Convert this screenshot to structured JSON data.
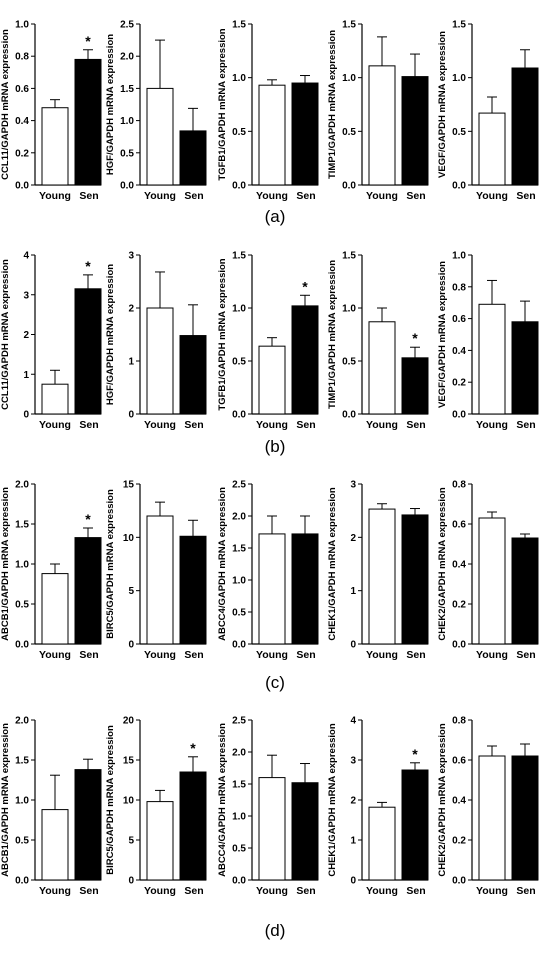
{
  "panels": [
    {
      "label": "(a)",
      "charts": [
        {
          "ylabel": "CCL11/GAPDH mRNA expression",
          "ylim": [
            0,
            1.0
          ],
          "ticks": [
            "0.0",
            "0.2",
            "0.4",
            "0.6",
            "0.8",
            "1.0"
          ],
          "categories": [
            "Young",
            "Sen"
          ],
          "values": [
            0.48,
            0.78
          ],
          "errors": [
            0.05,
            0.06
          ],
          "sig": [
            false,
            true
          ]
        },
        {
          "ylabel": "HGF/GAPDH mRNA expression",
          "ylim": [
            0,
            2.5
          ],
          "ticks": [
            "0.0",
            "0.5",
            "1.0",
            "1.5",
            "2.0",
            "2.5"
          ],
          "categories": [
            "Young",
            "Sen"
          ],
          "values": [
            1.5,
            0.84
          ],
          "errors": [
            0.75,
            0.35
          ],
          "sig": [
            false,
            false
          ]
        },
        {
          "ylabel": "TGFB1/GAPDH mRNA expression",
          "ylim": [
            0,
            1.5
          ],
          "ticks": [
            "0.0",
            "0.5",
            "1.0",
            "1.5"
          ],
          "categories": [
            "Young",
            "Sen"
          ],
          "values": [
            0.93,
            0.95
          ],
          "errors": [
            0.05,
            0.07
          ],
          "sig": [
            false,
            false
          ]
        },
        {
          "ylabel": "TIMP1/GAPDH mRNA expression",
          "ylim": [
            0,
            1.5
          ],
          "ticks": [
            "0.0",
            "0.5",
            "1.0",
            "1.5"
          ],
          "categories": [
            "Young",
            "Sen"
          ],
          "values": [
            1.11,
            1.01
          ],
          "errors": [
            0.27,
            0.21
          ],
          "sig": [
            false,
            false
          ]
        },
        {
          "ylabel": "VEGF/GAPDH mRNA expression",
          "ylim": [
            0,
            1.5
          ],
          "ticks": [
            "0.0",
            "0.5",
            "1.0",
            "1.5"
          ],
          "categories": [
            "Young",
            "Sen"
          ],
          "values": [
            0.67,
            1.09
          ],
          "errors": [
            0.15,
            0.17
          ],
          "sig": [
            false,
            false
          ]
        }
      ]
    },
    {
      "label": "(b)",
      "charts": [
        {
          "ylabel": "CCL11/GAPDH mRNA expression",
          "ylim": [
            0,
            4
          ],
          "ticks": [
            "0",
            "1",
            "2",
            "3",
            "4"
          ],
          "categories": [
            "Young",
            "Sen"
          ],
          "values": [
            0.75,
            3.15
          ],
          "errors": [
            0.35,
            0.35
          ],
          "sig": [
            false,
            true
          ]
        },
        {
          "ylabel": "HGF/GAPDH mRNA expression",
          "ylim": [
            0,
            3
          ],
          "ticks": [
            "0",
            "1",
            "2",
            "3"
          ],
          "categories": [
            "Young",
            "Sen"
          ],
          "values": [
            2.0,
            1.48
          ],
          "errors": [
            0.68,
            0.58
          ],
          "sig": [
            false,
            false
          ]
        },
        {
          "ylabel": "TGFB1/GAPDH mRNA expression",
          "ylim": [
            0,
            1.5
          ],
          "ticks": [
            "0.0",
            "0.5",
            "1.0",
            "1.5"
          ],
          "categories": [
            "Young",
            "Sen"
          ],
          "values": [
            0.64,
            1.02
          ],
          "errors": [
            0.08,
            0.1
          ],
          "sig": [
            false,
            true
          ]
        },
        {
          "ylabel": "TIMP1/GAPDH mRNA expression",
          "ylim": [
            0,
            1.5
          ],
          "ticks": [
            "0.0",
            "0.5",
            "1.0",
            "1.5"
          ],
          "categories": [
            "Young",
            "Sen"
          ],
          "values": [
            0.87,
            0.53
          ],
          "errors": [
            0.13,
            0.1
          ],
          "sig": [
            false,
            true
          ]
        },
        {
          "ylabel": "VEGF/GAPDH mRNA expression",
          "ylim": [
            0,
            1.0
          ],
          "ticks": [
            "0.0",
            "0.2",
            "0.4",
            "0.6",
            "0.8",
            "1.0"
          ],
          "categories": [
            "Young",
            "Sen"
          ],
          "values": [
            0.69,
            0.58
          ],
          "errors": [
            0.15,
            0.13
          ],
          "sig": [
            false,
            false
          ]
        }
      ]
    },
    {
      "label": "(c)",
      "charts": [
        {
          "ylabel": "ABCB1/GAPDH mRNA expression",
          "ylim": [
            0,
            2.0
          ],
          "ticks": [
            "0.0",
            "0.5",
            "1.0",
            "1.5",
            "2.0"
          ],
          "categories": [
            "Young",
            "Sen"
          ],
          "values": [
            0.88,
            1.33
          ],
          "errors": [
            0.12,
            0.12
          ],
          "sig": [
            false,
            true
          ]
        },
        {
          "ylabel": "BIRC5/GAPDH mRNA expression",
          "ylim": [
            0,
            15
          ],
          "ticks": [
            "0",
            "5",
            "10",
            "15"
          ],
          "categories": [
            "Young",
            "Sen"
          ],
          "values": [
            12.0,
            10.1
          ],
          "errors": [
            1.3,
            1.5
          ],
          "sig": [
            false,
            false
          ]
        },
        {
          "ylabel": "ABCC4/GAPDH mRNA expression",
          "ylim": [
            0,
            2.5
          ],
          "ticks": [
            "0.0",
            "0.5",
            "1.0",
            "1.5",
            "2.0",
            "2.5"
          ],
          "categories": [
            "Young",
            "Sen"
          ],
          "values": [
            1.72,
            1.72
          ],
          "errors": [
            0.28,
            0.28
          ],
          "sig": [
            false,
            false
          ]
        },
        {
          "ylabel": "CHEK1/GAPDH mRNA expression",
          "ylim": [
            0,
            3
          ],
          "ticks": [
            "0",
            "1",
            "2",
            "3"
          ],
          "categories": [
            "Young",
            "Sen"
          ],
          "values": [
            2.53,
            2.42
          ],
          "errors": [
            0.1,
            0.12
          ],
          "sig": [
            false,
            false
          ]
        },
        {
          "ylabel": "CHEK2/GAPDH mRNA expression",
          "ylim": [
            0,
            0.8
          ],
          "ticks": [
            "0.0",
            "0.2",
            "0.4",
            "0.6",
            "0.8"
          ],
          "categories": [
            "Young",
            "Sen"
          ],
          "values": [
            0.63,
            0.53
          ],
          "errors": [
            0.03,
            0.02
          ],
          "sig": [
            false,
            false
          ]
        }
      ]
    },
    {
      "label": "(d)",
      "charts": [
        {
          "ylabel": "ABCB1/GAPDH mRNA expression",
          "ylim": [
            0,
            2.0
          ],
          "ticks": [
            "0.0",
            "0.5",
            "1.0",
            "1.5",
            "2.0"
          ],
          "categories": [
            "Young",
            "Sen"
          ],
          "values": [
            0.88,
            1.38
          ],
          "errors": [
            0.43,
            0.13
          ],
          "sig": [
            false,
            false
          ]
        },
        {
          "ylabel": "BIRC5/GAPDH mRNA expression",
          "ylim": [
            0,
            20
          ],
          "ticks": [
            "0",
            "5",
            "10",
            "15",
            "20"
          ],
          "categories": [
            "Young",
            "Sen"
          ],
          "values": [
            9.8,
            13.5
          ],
          "errors": [
            1.4,
            1.9
          ],
          "sig": [
            false,
            true
          ]
        },
        {
          "ylabel": "ABCC4/GAPDH mRNA expression",
          "ylim": [
            0,
            2.5
          ],
          "ticks": [
            "0.0",
            "0.5",
            "1.0",
            "1.5",
            "2.0",
            "2.5"
          ],
          "categories": [
            "Young",
            "Sen"
          ],
          "values": [
            1.6,
            1.52
          ],
          "errors": [
            0.35,
            0.3
          ],
          "sig": [
            false,
            false
          ]
        },
        {
          "ylabel": "CHEK1/GAPDH mRNA expression",
          "ylim": [
            0,
            4
          ],
          "ticks": [
            "0",
            "1",
            "2",
            "3",
            "4"
          ],
          "categories": [
            "Young",
            "Sen"
          ],
          "values": [
            1.82,
            2.75
          ],
          "errors": [
            0.12,
            0.18
          ],
          "sig": [
            false,
            true
          ]
        },
        {
          "ylabel": "CHEK2/GAPDH mRNA expression",
          "ylim": [
            0,
            0.8
          ],
          "ticks": [
            "0.0",
            "0.2",
            "0.4",
            "0.6",
            "0.8"
          ],
          "categories": [
            "Young",
            "Sen"
          ],
          "values": [
            0.62,
            0.62
          ],
          "errors": [
            0.05,
            0.06
          ],
          "sig": [
            false,
            false
          ]
        }
      ]
    }
  ],
  "chart_data": [
    {
      "type": "bar",
      "ylabel": "CCL11/GAPDH mRNA expression",
      "categories": [
        "Young",
        "Sen"
      ],
      "values": [
        0.48,
        0.78
      ],
      "ylim": [
        0,
        1.0
      ],
      "grid": false
    },
    {
      "type": "bar",
      "ylabel": "HGF/GAPDH mRNA expression",
      "categories": [
        "Young",
        "Sen"
      ],
      "values": [
        1.5,
        0.84
      ],
      "ylim": [
        0,
        2.5
      ],
      "grid": false
    },
    {
      "type": "bar",
      "ylabel": "TGFB1/GAPDH mRNA expression",
      "categories": [
        "Young",
        "Sen"
      ],
      "values": [
        0.93,
        0.95
      ],
      "ylim": [
        0,
        1.5
      ],
      "grid": false
    },
    {
      "type": "bar",
      "ylabel": "TIMP1/GAPDH mRNA expression",
      "categories": [
        "Young",
        "Sen"
      ],
      "values": [
        1.11,
        1.01
      ],
      "ylim": [
        0,
        1.5
      ],
      "grid": false
    },
    {
      "type": "bar",
      "ylabel": "VEGF/GAPDH mRNA expression",
      "categories": [
        "Young",
        "Sen"
      ],
      "values": [
        0.67,
        1.09
      ],
      "ylim": [
        0,
        1.5
      ],
      "grid": false
    },
    {
      "type": "bar",
      "ylabel": "CCL11/GAPDH mRNA expression",
      "categories": [
        "Young",
        "Sen"
      ],
      "values": [
        0.75,
        3.15
      ],
      "ylim": [
        0,
        4
      ],
      "grid": false
    },
    {
      "type": "bar",
      "ylabel": "HGF/GAPDH mRNA expression",
      "categories": [
        "Young",
        "Sen"
      ],
      "values": [
        2.0,
        1.48
      ],
      "ylim": [
        0,
        3
      ],
      "grid": false
    },
    {
      "type": "bar",
      "ylabel": "TGFB1/GAPDH mRNA expression",
      "categories": [
        "Young",
        "Sen"
      ],
      "values": [
        0.64,
        1.02
      ],
      "ylim": [
        0,
        1.5
      ],
      "grid": false
    },
    {
      "type": "bar",
      "ylabel": "TIMP1/GAPDH mRNA expression",
      "categories": [
        "Young",
        "Sen"
      ],
      "values": [
        0.87,
        0.53
      ],
      "ylim": [
        0,
        1.5
      ],
      "grid": false
    },
    {
      "type": "bar",
      "ylabel": "VEGF/GAPDH mRNA expression",
      "categories": [
        "Young",
        "Sen"
      ],
      "values": [
        0.69,
        0.58
      ],
      "ylim": [
        0,
        1.0
      ],
      "grid": false
    },
    {
      "type": "bar",
      "ylabel": "ABCB1/GAPDH mRNA expression",
      "categories": [
        "Young",
        "Sen"
      ],
      "values": [
        0.88,
        1.33
      ],
      "ylim": [
        0,
        2.0
      ],
      "grid": false
    },
    {
      "type": "bar",
      "ylabel": "BIRC5/GAPDH mRNA expression",
      "categories": [
        "Young",
        "Sen"
      ],
      "values": [
        12.0,
        10.1
      ],
      "ylim": [
        0,
        15
      ],
      "grid": false
    },
    {
      "type": "bar",
      "ylabel": "ABCC4/GAPDH mRNA expression",
      "categories": [
        "Young",
        "Sen"
      ],
      "values": [
        1.72,
        1.72
      ],
      "ylim": [
        0,
        2.5
      ],
      "grid": false
    },
    {
      "type": "bar",
      "ylabel": "CHEK1/GAPDH mRNA expression",
      "categories": [
        "Young",
        "Sen"
      ],
      "values": [
        2.53,
        2.42
      ],
      "ylim": [
        0,
        3
      ],
      "grid": false
    },
    {
      "type": "bar",
      "ylabel": "CHEK2/GAPDH mRNA expression",
      "categories": [
        "Young",
        "Sen"
      ],
      "values": [
        0.63,
        0.53
      ],
      "ylim": [
        0,
        0.8
      ],
      "grid": false
    },
    {
      "type": "bar",
      "ylabel": "ABCB1/GAPDH mRNA expression",
      "categories": [
        "Young",
        "Sen"
      ],
      "values": [
        0.88,
        1.38
      ],
      "ylim": [
        0,
        2.0
      ],
      "grid": false
    },
    {
      "type": "bar",
      "ylabel": "BIRC5/GAPDH mRNA expression",
      "categories": [
        "Young",
        "Sen"
      ],
      "values": [
        9.8,
        13.5
      ],
      "ylim": [
        0,
        20
      ],
      "grid": false
    },
    {
      "type": "bar",
      "ylabel": "ABCC4/GAPDH mRNA expression",
      "categories": [
        "Young",
        "Sen"
      ],
      "values": [
        1.6,
        1.52
      ],
      "ylim": [
        0,
        2.5
      ],
      "grid": false
    },
    {
      "type": "bar",
      "ylabel": "CHEK1/GAPDH mRNA expression",
      "categories": [
        "Young",
        "Sen"
      ],
      "values": [
        1.82,
        2.75
      ],
      "ylim": [
        0,
        4
      ],
      "grid": false
    },
    {
      "type": "bar",
      "ylabel": "CHEK2/GAPDH mRNA expression",
      "categories": [
        "Young",
        "Sen"
      ],
      "values": [
        0.62,
        0.62
      ],
      "ylim": [
        0,
        0.8
      ],
      "grid": false
    }
  ],
  "colors": {
    "young_fill": "#ffffff",
    "sen_fill": "#000000",
    "stroke": "#000000"
  }
}
